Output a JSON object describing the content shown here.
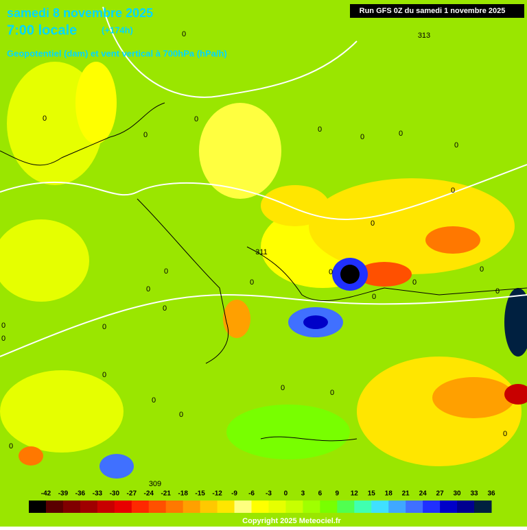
{
  "header": {
    "date": "samedi 8 novembre 2025",
    "time": "7:00 locale",
    "lead": "(+174h)",
    "subtitle": "Geopotentiel (dam) et vent vertical à 700hPa (hPa/h)",
    "run": "Run GFS 0Z du samedi 1 novembre 2025"
  },
  "contour_labels": [
    313,
    311,
    309,
    0,
    0,
    0,
    0,
    0,
    0,
    0,
    0,
    0,
    0,
    0,
    0,
    0,
    0,
    0,
    0,
    0,
    0,
    0,
    0,
    0,
    0,
    0,
    0,
    0,
    0,
    0,
    0,
    0
  ],
  "legend": {
    "labels": [
      -42,
      -39,
      -36,
      -33,
      -30,
      -27,
      -24,
      -21,
      -18,
      -15,
      -12,
      -9,
      -6,
      -3,
      0,
      3,
      6,
      9,
      12,
      15,
      18,
      21,
      24,
      27,
      30,
      33,
      36
    ],
    "colors": [
      "#000000",
      "#5a0000",
      "#800000",
      "#a00000",
      "#c80000",
      "#e80000",
      "#ff2800",
      "#ff5000",
      "#ff7800",
      "#ffa000",
      "#ffc800",
      "#ffe600",
      "#ffff80",
      "#ffff00",
      "#e6ff00",
      "#c8ff00",
      "#a0ff00",
      "#78ff00",
      "#50ff50",
      "#40ffb0",
      "#40e0ff",
      "#40a8ff",
      "#4070ff",
      "#2030ff",
      "#0000c8",
      "#000090",
      "#002040"
    ]
  },
  "copyright": "Copyright 2025 Meteociel.fr"
}
